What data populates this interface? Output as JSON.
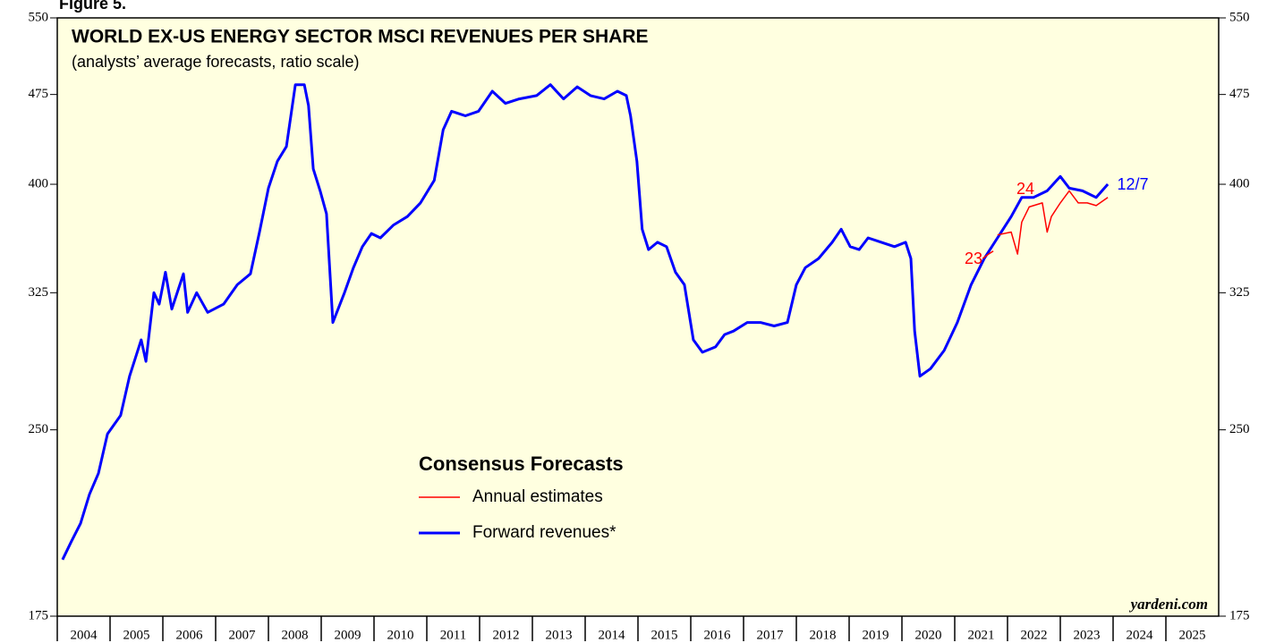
{
  "chart_data": {
    "type": "line",
    "figure_label": "Figure 5.",
    "title": "WORLD EX-US ENERGY SECTOR MSCI REVENUES PER SHARE",
    "subtitle": "(analysts’ average forecasts, ratio scale)",
    "legend_title": "Consensus Forecasts",
    "source": "yardeni.com",
    "log_scale": true,
    "ylim": [
      175,
      550
    ],
    "yticks": [
      175,
      250,
      325,
      400,
      475,
      550
    ],
    "xlim": [
      2004,
      2026
    ],
    "xticks": [
      2004,
      2005,
      2006,
      2007,
      2008,
      2009,
      2010,
      2011,
      2012,
      2013,
      2014,
      2015,
      2016,
      2017,
      2018,
      2019,
      2020,
      2021,
      2022,
      2023,
      2024,
      2025
    ],
    "background": "#ffffe0",
    "annotations": [
      {
        "text": "23",
        "color": "#ff0000"
      },
      {
        "text": "24",
        "color": "#ff0000"
      },
      {
        "text": "12/7",
        "color": "#0000ff"
      }
    ],
    "series": [
      {
        "name": "Annual estimates",
        "color": "#ff0000",
        "line_width": 1.5,
        "x": [
          2021.53,
          2021.64,
          2021.73,
          2021.77,
          2021.81,
          2022.07,
          2022.19,
          2022.27,
          2022.41,
          2022.66,
          2022.75,
          2022.83,
          2023.0,
          2023.17,
          2023.34,
          2023.51,
          2023.68,
          2023.9
        ],
        "values": [
          347,
          350,
          352,
          null,
          363,
          365,
          350,
          372,
          383,
          386,
          365,
          376,
          386,
          395,
          386,
          386,
          384,
          390
        ]
      },
      {
        "name": "Forward revenues*",
        "color": "#0000ff",
        "line_width": 3,
        "x": [
          2004.1,
          2004.27,
          2004.44,
          2004.61,
          2004.78,
          2004.95,
          2005.2,
          2005.37,
          2005.59,
          2005.68,
          2005.83,
          2005.93,
          2006.05,
          2006.17,
          2006.39,
          2006.47,
          2006.64,
          2006.85,
          2007.15,
          2007.41,
          2007.66,
          2007.83,
          2008.0,
          2008.17,
          2008.34,
          2008.51,
          2008.68,
          2008.76,
          2008.85,
          2008.98,
          2009.1,
          2009.22,
          2009.44,
          2009.61,
          2009.78,
          2009.95,
          2010.12,
          2010.37,
          2010.63,
          2010.88,
          2011.14,
          2011.31,
          2011.47,
          2011.73,
          2011.98,
          2012.24,
          2012.49,
          2012.75,
          2013.08,
          2013.34,
          2013.59,
          2013.85,
          2014.1,
          2014.36,
          2014.61,
          2014.78,
          2014.86,
          2014.98,
          2015.08,
          2015.2,
          2015.37,
          2015.54,
          2015.71,
          2015.88,
          2016.05,
          2016.22,
          2016.47,
          2016.64,
          2016.81,
          2017.07,
          2017.32,
          2017.58,
          2017.83,
          2018.0,
          2018.17,
          2018.42,
          2018.68,
          2018.85,
          2019.02,
          2019.19,
          2019.36,
          2019.61,
          2019.86,
          2020.07,
          2020.17,
          2020.24,
          2020.34,
          2020.54,
          2020.8,
          2021.05,
          2021.31,
          2021.56,
          2021.81,
          2022.07,
          2022.27,
          2022.49,
          2022.75,
          2023.0,
          2023.17,
          2023.42,
          2023.68,
          2023.9
        ],
        "values": [
          195,
          202,
          209,
          221,
          230,
          248,
          257,
          277,
          297,
          285,
          325,
          318,
          338,
          315,
          337,
          313,
          325,
          313,
          318,
          330,
          337,
          365,
          397,
          418,
          430,
          484,
          484,
          465,
          412,
          395,
          378,
          307,
          325,
          341,
          355,
          364,
          361,
          370,
          376,
          386,
          403,
          444,
          460,
          456,
          460,
          478,
          467,
          471,
          474,
          484,
          471,
          482,
          474,
          471,
          478,
          474,
          456,
          418,
          367,
          353,
          358,
          355,
          338,
          330,
          297,
          290,
          293,
          300,
          302,
          307,
          307,
          305,
          307,
          330,
          341,
          347,
          358,
          367,
          355,
          353,
          361,
          358,
          355,
          358,
          347,
          302,
          277,
          281,
          291,
          307,
          330,
          347,
          361,
          376,
          390,
          390,
          395,
          406,
          397,
          395,
          390,
          400
        ]
      }
    ]
  }
}
